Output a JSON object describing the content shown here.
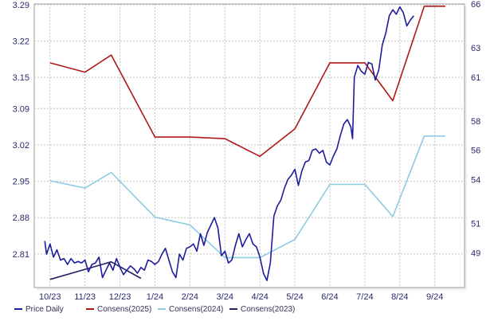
{
  "chart_data": {
    "type": "line",
    "title": "",
    "xlabel": "",
    "ylabel": "",
    "grid": true,
    "legend_position": "bottom",
    "x_ticks": [
      "10/23",
      "11/23",
      "12/23",
      "1/24",
      "2/24",
      "3/24",
      "4/24",
      "5/24",
      "6/24",
      "7/24",
      "8/24",
      "9/24"
    ],
    "y_left": {
      "ticks": [
        "2.81",
        "2.88",
        "2.95",
        "3.02",
        "3.09",
        "3.15",
        "3.22",
        "3.29"
      ],
      "range": [
        2.7454,
        3.2913
      ]
    },
    "y_right": {
      "ticks": [
        "49",
        "51",
        "54",
        "56",
        "58",
        "61",
        "63",
        "66"
      ],
      "range": [
        46.62,
        66.0
      ]
    },
    "series": [
      {
        "name": "Price Daily",
        "axis": "right",
        "color": "#1c1c9c",
        "values": [
          [
            -0.15,
            49.8
          ],
          [
            -0.1,
            48.9
          ],
          [
            0.0,
            49.6
          ],
          [
            0.1,
            48.7
          ],
          [
            0.2,
            49.2
          ],
          [
            0.3,
            48.5
          ],
          [
            0.4,
            48.6
          ],
          [
            0.5,
            48.2
          ],
          [
            0.6,
            48.6
          ],
          [
            0.7,
            48.3
          ],
          [
            0.8,
            48.4
          ],
          [
            0.9,
            48.3
          ],
          [
            1.0,
            48.5
          ],
          [
            1.1,
            47.7
          ],
          [
            1.2,
            48.2
          ],
          [
            1.3,
            48.3
          ],
          [
            1.4,
            48.7
          ],
          [
            1.5,
            47.3
          ],
          [
            1.6,
            47.8
          ],
          [
            1.7,
            48.3
          ],
          [
            1.8,
            47.8
          ],
          [
            1.9,
            48.6
          ],
          [
            2.0,
            48.0
          ],
          [
            2.1,
            47.5
          ],
          [
            2.2,
            47.8
          ],
          [
            2.3,
            48.1
          ],
          [
            2.4,
            47.9
          ],
          [
            2.5,
            47.6
          ],
          [
            2.6,
            48.0
          ],
          [
            2.7,
            47.8
          ],
          [
            2.8,
            48.5
          ],
          [
            2.9,
            48.4
          ],
          [
            3.0,
            48.2
          ],
          [
            3.1,
            48.4
          ],
          [
            3.2,
            48.9
          ],
          [
            3.3,
            49.3
          ],
          [
            3.4,
            48.5
          ],
          [
            3.5,
            47.7
          ],
          [
            3.6,
            47.3
          ],
          [
            3.7,
            48.9
          ],
          [
            3.8,
            48.5
          ],
          [
            3.9,
            49.3
          ],
          [
            4.0,
            49.4
          ],
          [
            4.1,
            49.6
          ],
          [
            4.2,
            49.1
          ],
          [
            4.3,
            50.3
          ],
          [
            4.4,
            49.5
          ],
          [
            4.5,
            50.4
          ],
          [
            4.6,
            50.9
          ],
          [
            4.7,
            51.4
          ],
          [
            4.8,
            50.7
          ],
          [
            4.9,
            48.8
          ],
          [
            5.0,
            49.1
          ],
          [
            5.1,
            48.3
          ],
          [
            5.2,
            48.5
          ],
          [
            5.3,
            49.5
          ],
          [
            5.4,
            50.3
          ],
          [
            5.5,
            49.4
          ],
          [
            5.6,
            49.9
          ],
          [
            5.7,
            50.3
          ],
          [
            5.8,
            49.6
          ],
          [
            5.9,
            49.4
          ],
          [
            6.0,
            48.7
          ],
          [
            6.1,
            47.6
          ],
          [
            6.2,
            47.1
          ],
          [
            6.3,
            48.3
          ],
          [
            6.4,
            51.5
          ],
          [
            6.5,
            52.2
          ],
          [
            6.6,
            52.6
          ],
          [
            6.7,
            53.4
          ],
          [
            6.8,
            54.0
          ],
          [
            6.9,
            54.3
          ],
          [
            7.0,
            54.7
          ],
          [
            7.1,
            53.6
          ],
          [
            7.2,
            54.6
          ],
          [
            7.3,
            55.2
          ],
          [
            7.4,
            55.3
          ],
          [
            7.5,
            56.0
          ],
          [
            7.6,
            56.1
          ],
          [
            7.7,
            55.8
          ],
          [
            7.8,
            56.0
          ],
          [
            7.9,
            55.2
          ],
          [
            8.0,
            55.0
          ],
          [
            8.1,
            55.6
          ],
          [
            8.2,
            56.1
          ],
          [
            8.3,
            57.0
          ],
          [
            8.4,
            57.8
          ],
          [
            8.5,
            58.1
          ],
          [
            8.6,
            57.6
          ],
          [
            8.65,
            56.8
          ],
          [
            8.7,
            61.0
          ],
          [
            8.8,
            61.8
          ],
          [
            8.9,
            61.4
          ],
          [
            9.0,
            61.2
          ],
          [
            9.1,
            62.0
          ],
          [
            9.2,
            61.9
          ],
          [
            9.3,
            60.8
          ],
          [
            9.4,
            61.5
          ],
          [
            9.5,
            63.2
          ],
          [
            9.6,
            64.0
          ],
          [
            9.7,
            65.2
          ],
          [
            9.8,
            65.6
          ],
          [
            9.9,
            65.3
          ],
          [
            10.0,
            65.8
          ],
          [
            10.1,
            65.4
          ],
          [
            10.2,
            64.5
          ],
          [
            10.3,
            64.9
          ],
          [
            10.4,
            65.2
          ]
        ]
      },
      {
        "name": "Consens(2025)",
        "axis": "left",
        "color": "#b01818",
        "values": [
          [
            0.0,
            3.178
          ],
          [
            1.0,
            3.16
          ],
          [
            1.75,
            3.193
          ],
          [
            3.0,
            3.035
          ],
          [
            4.0,
            3.035
          ],
          [
            5.0,
            3.032
          ],
          [
            6.0,
            2.998
          ],
          [
            7.0,
            3.051
          ],
          [
            8.0,
            3.178
          ],
          [
            9.0,
            3.178
          ],
          [
            9.8,
            3.105
          ],
          [
            10.7,
            3.287
          ],
          [
            11.3,
            3.287
          ]
        ]
      },
      {
        "name": "Consens(2024)",
        "axis": "left",
        "color": "#8ccbe2",
        "values": [
          [
            0.0,
            2.951
          ],
          [
            1.0,
            2.937
          ],
          [
            1.75,
            2.967
          ],
          [
            3.0,
            2.881
          ],
          [
            4.0,
            2.866
          ],
          [
            5.0,
            2.803
          ],
          [
            6.0,
            2.803
          ],
          [
            7.0,
            2.838
          ],
          [
            8.0,
            2.944
          ],
          [
            9.0,
            2.944
          ],
          [
            9.8,
            2.882
          ],
          [
            10.7,
            3.037
          ],
          [
            11.3,
            3.037
          ]
        ]
      },
      {
        "name": "Consens(2023)",
        "axis": "left",
        "color": "#232360",
        "values": [
          [
            0.0,
            2.761
          ],
          [
            1.75,
            2.795
          ],
          [
            2.6,
            2.763
          ]
        ]
      }
    ]
  }
}
